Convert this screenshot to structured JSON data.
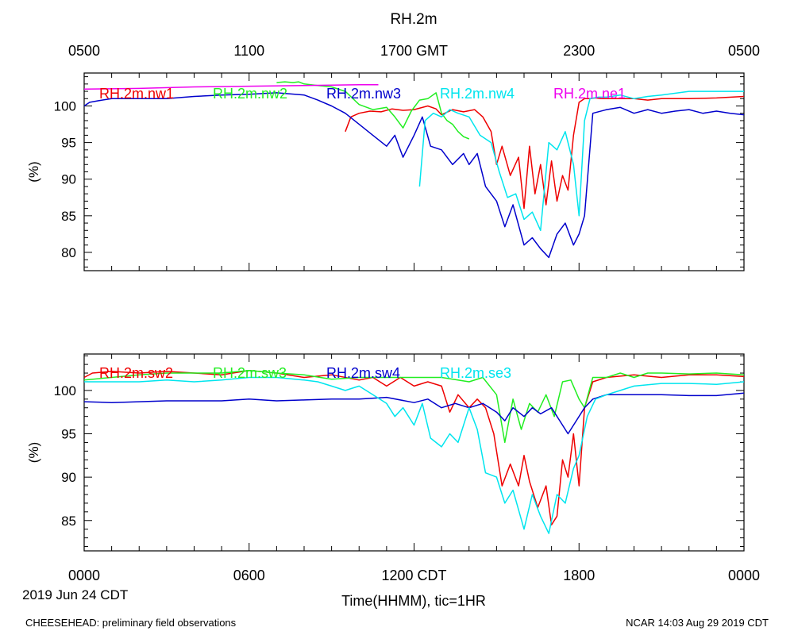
{
  "title": "RH.2m",
  "colors": {
    "red": "#ee0000",
    "green": "#22ee22",
    "blue": "#0000cc",
    "cyan": "#00e5ee",
    "magenta": "#ee00ee"
  },
  "top_axis": {
    "tick_labels": [
      "0500",
      "1100",
      "1700 GMT",
      "2300",
      "0500"
    ],
    "tick_positions_hours": [
      0,
      6,
      12,
      18,
      24
    ]
  },
  "bottom_axis": {
    "tick_labels": [
      "0000",
      "0600",
      "1200 CDT",
      "1800",
      "0000"
    ],
    "tick_positions_hours": [
      0,
      6,
      12,
      18,
      24
    ],
    "date_label": "2019 Jun 24 CDT",
    "xlabel": "Time(HHMM), tic=1HR"
  },
  "footer": {
    "left": "CHEESEHEAD: preliminary field observations",
    "right": "NCAR 14:03 Aug 29 2019 CDT"
  },
  "chart_data": [
    {
      "type": "line",
      "panel": "top",
      "title": "RH.2m",
      "ylabel": "(%)",
      "xlabel": "Time(HHMM), tic=1HR",
      "xlim": [
        0,
        24
      ],
      "ylim": [
        77.5,
        104.5
      ],
      "yticks": [
        80,
        85,
        90,
        95,
        100
      ],
      "series": [
        {
          "name": "RH.2m.nw1",
          "color": "red",
          "x": [
            9.5,
            9.7,
            10.0,
            10.4,
            10.8,
            11.2,
            11.6,
            12.0,
            12.5,
            12.8,
            13.0,
            13.4,
            13.8,
            14.2,
            14.5,
            14.8,
            15.0,
            15.2,
            15.5,
            15.8,
            16.0,
            16.2,
            16.4,
            16.6,
            16.8,
            17.0,
            17.2,
            17.4,
            17.6,
            17.8,
            18.0,
            18.2,
            18.4,
            18.6,
            18.8,
            19.0,
            19.5,
            20.0,
            20.5,
            21.0,
            22.0,
            23.0,
            24.0
          ],
          "y": [
            96.5,
            98.5,
            99.0,
            99.3,
            99.2,
            99.6,
            99.4,
            99.5,
            100.0,
            99.6,
            98.8,
            99.5,
            99.2,
            99.5,
            98.5,
            96.5,
            92.0,
            94.5,
            90.5,
            93.0,
            86.0,
            94.5,
            88.0,
            92.0,
            86.5,
            92.5,
            87.0,
            90.5,
            88.5,
            96.0,
            100.5,
            101.0,
            101.0,
            101.1,
            101.0,
            101.0,
            101.0,
            101.0,
            100.8,
            101.0,
            101.0,
            101.1,
            101.3
          ]
        },
        {
          "name": "RH.2m.nw2",
          "color": "green",
          "x": [
            7.0,
            7.3,
            7.6,
            7.8,
            8.0,
            8.5,
            9.0,
            9.5,
            10.0,
            10.5,
            11.0,
            11.3,
            11.6,
            11.9,
            12.2,
            12.5,
            12.8,
            13.0,
            13.2,
            13.4,
            13.6,
            13.8,
            14.0
          ],
          "y": [
            103.2,
            103.3,
            103.2,
            103.3,
            103.0,
            102.8,
            102.6,
            102.0,
            100.2,
            99.5,
            99.8,
            98.5,
            97.0,
            99.3,
            100.8,
            101.0,
            101.8,
            99.0,
            98.0,
            97.5,
            96.5,
            95.8,
            95.5
          ]
        },
        {
          "name": "RH.2m.nw3",
          "color": "blue",
          "x": [
            0.0,
            0.2,
            0.5,
            1.0,
            2.0,
            3.0,
            4.0,
            5.0,
            6.0,
            7.0,
            8.0,
            8.5,
            9.0,
            9.5,
            10.0,
            10.5,
            11.0,
            11.3,
            11.6,
            12.0,
            12.3,
            12.6,
            13.0,
            13.4,
            13.8,
            14.0,
            14.3,
            14.6,
            15.0,
            15.3,
            15.6,
            16.0,
            16.3,
            16.6,
            16.9,
            17.2,
            17.5,
            17.8,
            18.0,
            18.2,
            18.5,
            19.0,
            19.5,
            20.0,
            20.5,
            21.0,
            21.5,
            22.0,
            22.5,
            23.0,
            23.5,
            24.0
          ],
          "y": [
            100.0,
            100.5,
            100.7,
            101.0,
            101.0,
            101.0,
            101.3,
            101.5,
            101.6,
            101.8,
            101.5,
            100.8,
            100.0,
            99.0,
            97.5,
            96.0,
            94.5,
            96.0,
            93.0,
            96.0,
            98.5,
            94.5,
            94.0,
            92.0,
            93.5,
            92.0,
            93.5,
            89.0,
            87.0,
            83.5,
            86.5,
            81.0,
            82.0,
            80.5,
            79.3,
            82.5,
            84.0,
            81.0,
            82.5,
            85.0,
            99.0,
            99.5,
            99.8,
            99.0,
            99.5,
            99.0,
            99.3,
            99.5,
            99.0,
            99.3,
            99.0,
            98.8
          ]
        },
        {
          "name": "RH.2m.nw4",
          "color": "cyan",
          "x": [
            12.2,
            12.4,
            12.7,
            13.0,
            13.3,
            13.6,
            14.0,
            14.4,
            14.8,
            15.1,
            15.4,
            15.7,
            16.0,
            16.3,
            16.6,
            16.9,
            17.2,
            17.5,
            17.8,
            18.0,
            18.2,
            18.4,
            18.7,
            19.0,
            19.5,
            20.0,
            20.5,
            21.0,
            22.0,
            23.0,
            24.0
          ],
          "y": [
            89.0,
            98.0,
            99.0,
            98.5,
            99.5,
            99.0,
            98.5,
            96.0,
            95.0,
            91.0,
            87.5,
            88.0,
            84.5,
            85.5,
            83.0,
            95.0,
            94.0,
            96.5,
            92.0,
            85.0,
            98.0,
            101.0,
            101.2,
            101.2,
            101.5,
            101.0,
            101.3,
            101.5,
            102.0,
            102.0,
            102.0
          ]
        },
        {
          "name": "RH.2m.ne1",
          "color": "magenta",
          "x": [
            0.0,
            2.0,
            4.0,
            6.0,
            8.0,
            10.0,
            10.7
          ],
          "y": [
            102.3,
            102.4,
            102.6,
            102.7,
            102.8,
            102.9,
            102.9
          ]
        }
      ]
    },
    {
      "type": "line",
      "panel": "bottom",
      "ylabel": "(%)",
      "xlabel": "Time(HHMM), tic=1HR",
      "xlim": [
        0,
        24
      ],
      "ylim": [
        81.5,
        104.2
      ],
      "yticks": [
        85,
        90,
        95,
        100
      ],
      "series": [
        {
          "name": "RH.2m.sw2",
          "color": "red",
          "x": [
            0.0,
            0.3,
            1.0,
            2.0,
            3.0,
            4.0,
            5.0,
            6.0,
            7.0,
            8.0,
            9.0,
            10.0,
            10.5,
            11.0,
            11.5,
            12.0,
            12.5,
            13.0,
            13.3,
            13.6,
            14.0,
            14.3,
            14.6,
            14.9,
            15.2,
            15.5,
            15.8,
            16.0,
            16.2,
            16.5,
            16.8,
            17.0,
            17.2,
            17.4,
            17.6,
            17.8,
            18.0,
            18.2,
            18.5,
            19.0,
            20.0,
            21.0,
            22.0,
            23.0,
            24.0
          ],
          "y": [
            101.5,
            102.0,
            102.2,
            102.0,
            102.2,
            102.0,
            101.8,
            102.3,
            102.0,
            101.5,
            101.8,
            101.2,
            101.5,
            100.5,
            101.5,
            100.5,
            101.0,
            100.5,
            97.5,
            99.5,
            98.0,
            99.0,
            98.0,
            95.0,
            89.0,
            91.5,
            89.0,
            92.5,
            89.5,
            86.5,
            89.0,
            84.5,
            85.5,
            92.0,
            90.0,
            95.0,
            89.0,
            98.0,
            101.0,
            101.5,
            101.8,
            101.5,
            101.8,
            101.8,
            101.6
          ]
        },
        {
          "name": "RH.2m.sw3",
          "color": "green",
          "x": [
            0.0,
            1.0,
            2.0,
            3.0,
            4.0,
            5.0,
            6.0,
            7.0,
            8.0,
            9.0,
            10.0,
            11.0,
            12.0,
            13.0,
            14.0,
            14.5,
            15.0,
            15.3,
            15.6,
            15.9,
            16.2,
            16.5,
            16.8,
            17.1,
            17.4,
            17.7,
            18.0,
            18.2,
            18.5,
            19.0,
            19.5,
            20.0,
            20.5,
            21.0,
            22.0,
            23.0,
            24.0
          ],
          "y": [
            101.2,
            101.5,
            101.8,
            102.0,
            102.0,
            102.0,
            102.3,
            102.0,
            101.8,
            101.3,
            101.5,
            101.5,
            101.5,
            101.5,
            101.0,
            101.5,
            99.5,
            94.0,
            99.0,
            95.5,
            98.5,
            97.5,
            99.5,
            97.0,
            101.0,
            101.2,
            99.0,
            98.0,
            101.5,
            101.5,
            102.0,
            101.5,
            102.0,
            102.0,
            101.9,
            102.0,
            101.8
          ]
        },
        {
          "name": "RH.2m.sw4",
          "color": "blue",
          "x": [
            0.0,
            1.0,
            2.0,
            3.0,
            4.0,
            5.0,
            6.0,
            7.0,
            8.0,
            9.0,
            10.0,
            11.0,
            12.0,
            12.5,
            13.0,
            13.5,
            14.0,
            14.5,
            15.0,
            15.3,
            15.6,
            16.0,
            16.3,
            16.6,
            17.0,
            17.3,
            17.6,
            17.9,
            18.2,
            18.5,
            19.0,
            20.0,
            21.0,
            22.0,
            23.0,
            24.0
          ],
          "y": [
            98.7,
            98.6,
            98.7,
            98.8,
            98.8,
            98.8,
            99.0,
            98.8,
            98.9,
            99.0,
            99.0,
            99.2,
            98.6,
            99.0,
            98.0,
            98.5,
            98.0,
            98.5,
            97.5,
            96.5,
            98.0,
            97.0,
            98.0,
            97.3,
            98.0,
            96.5,
            95.0,
            96.5,
            98.0,
            99.0,
            99.5,
            99.5,
            99.5,
            99.4,
            99.4,
            99.7
          ]
        },
        {
          "name": "RH.2m.se3",
          "color": "cyan",
          "x": [
            0.0,
            1.0,
            2.0,
            3.0,
            4.0,
            5.0,
            6.0,
            7.0,
            8.0,
            8.5,
            9.0,
            9.5,
            10.0,
            10.5,
            11.0,
            11.3,
            11.6,
            12.0,
            12.3,
            12.6,
            13.0,
            13.3,
            13.6,
            14.0,
            14.3,
            14.6,
            15.0,
            15.3,
            15.6,
            16.0,
            16.3,
            16.6,
            16.9,
            17.2,
            17.5,
            17.8,
            18.0,
            18.3,
            18.6,
            19.0,
            19.5,
            20.0,
            21.0,
            22.0,
            23.0,
            24.0
          ],
          "y": [
            101.0,
            101.0,
            101.0,
            101.2,
            101.0,
            101.2,
            101.5,
            101.5,
            101.2,
            101.0,
            100.5,
            100.0,
            100.5,
            99.5,
            98.5,
            97.0,
            98.0,
            96.0,
            98.5,
            94.5,
            93.5,
            95.0,
            94.0,
            98.0,
            95.5,
            90.5,
            90.0,
            87.0,
            88.5,
            84.0,
            88.0,
            85.5,
            83.5,
            88.0,
            87.0,
            91.0,
            92.5,
            97.0,
            99.0,
            99.5,
            100.0,
            100.5,
            100.8,
            100.8,
            100.7,
            101.0
          ]
        }
      ]
    }
  ]
}
